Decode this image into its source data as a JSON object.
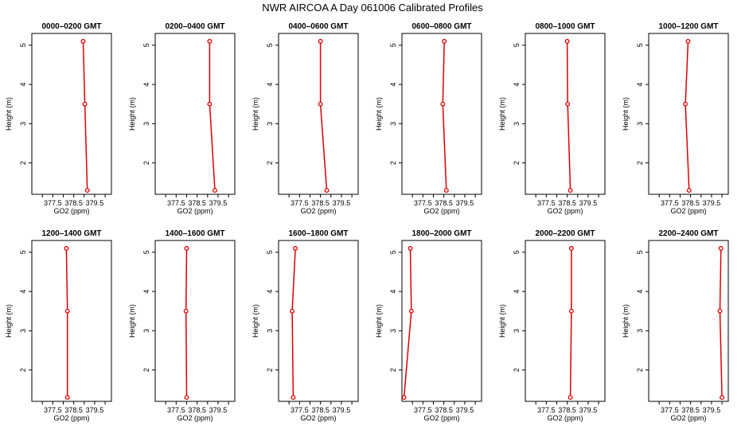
{
  "title": "NWR AIRCOA A  Day 061006  Calibrated Profiles",
  "colors": {
    "series": "#dd0000",
    "axis": "#000000",
    "background": "#ffffff"
  },
  "chart_data": [
    {
      "type": "line",
      "title": "0000–0200 GMT",
      "xlabel": "GO2 (ppm)",
      "ylabel": "Height (m)",
      "xlim": [
        376.5,
        380.3
      ],
      "ylim": [
        1.2,
        5.3
      ],
      "xticks": [
        377.5,
        378.5,
        379.5
      ],
      "xtick_labels": [
        "377.5",
        "378.5",
        "379.5"
      ],
      "yticks": [
        2,
        3,
        4,
        5
      ],
      "ytick_labels": [
        "2",
        "3",
        "4",
        "5"
      ],
      "x": [
        378.95,
        379.03,
        379.15
      ],
      "y": [
        5.1,
        3.5,
        1.3
      ]
    },
    {
      "type": "line",
      "title": "0200–0400 GMT",
      "xlabel": "GO2 (ppm)",
      "ylabel": "Height (m)",
      "xlim": [
        376.5,
        380.3
      ],
      "ylim": [
        1.2,
        5.3
      ],
      "xticks": [
        377.5,
        378.5,
        379.5
      ],
      "xtick_labels": [
        "377.5",
        "378.5",
        "379.5"
      ],
      "yticks": [
        2,
        3,
        4,
        5
      ],
      "ytick_labels": [
        "2",
        "3",
        "4",
        "5"
      ],
      "x": [
        379.1,
        379.1,
        379.35
      ],
      "y": [
        5.1,
        3.5,
        1.3
      ]
    },
    {
      "type": "line",
      "title": "0400–0600 GMT",
      "xlabel": "GO2 (ppm)",
      "ylabel": "Height (m)",
      "xlim": [
        376.5,
        380.3
      ],
      "ylim": [
        1.2,
        5.3
      ],
      "xticks": [
        377.5,
        378.5,
        379.5
      ],
      "xtick_labels": [
        "377.5",
        "378.5",
        "379.5"
      ],
      "yticks": [
        2,
        3,
        4,
        5
      ],
      "ytick_labels": [
        "2",
        "3",
        "4",
        "5"
      ],
      "x": [
        378.5,
        378.5,
        378.8
      ],
      "y": [
        5.1,
        3.5,
        1.3
      ]
    },
    {
      "type": "line",
      "title": "0600–0800 GMT",
      "xlabel": "GO2 (ppm)",
      "ylabel": "Height (m)",
      "xlim": [
        376.5,
        380.3
      ],
      "ylim": [
        1.2,
        5.3
      ],
      "xticks": [
        377.5,
        378.5,
        379.5
      ],
      "xtick_labels": [
        "377.5",
        "378.5",
        "379.5"
      ],
      "yticks": [
        2,
        3,
        4,
        5
      ],
      "ytick_labels": [
        "2",
        "3",
        "4",
        "5"
      ],
      "x": [
        378.52,
        378.45,
        378.62
      ],
      "y": [
        5.1,
        3.5,
        1.3
      ]
    },
    {
      "type": "line",
      "title": "0800–1000 GMT",
      "xlabel": "GO2 (ppm)",
      "ylabel": "Height (m)",
      "xlim": [
        376.5,
        380.3
      ],
      "ylim": [
        1.2,
        5.3
      ],
      "xticks": [
        377.5,
        378.5,
        379.5
      ],
      "xtick_labels": [
        "377.5",
        "378.5",
        "379.5"
      ],
      "yticks": [
        2,
        3,
        4,
        5
      ],
      "ytick_labels": [
        "2",
        "3",
        "4",
        "5"
      ],
      "x": [
        378.5,
        378.52,
        378.65
      ],
      "y": [
        5.1,
        3.5,
        1.3
      ]
    },
    {
      "type": "line",
      "title": "1000–1200 GMT",
      "xlabel": "GO2 (ppm)",
      "ylabel": "Height (m)",
      "xlim": [
        376.5,
        380.3
      ],
      "ylim": [
        1.2,
        5.3
      ],
      "xticks": [
        377.5,
        378.5,
        379.5
      ],
      "xtick_labels": [
        "377.5",
        "378.5",
        "379.5"
      ],
      "yticks": [
        2,
        3,
        4,
        5
      ],
      "ytick_labels": [
        "2",
        "3",
        "4",
        "5"
      ],
      "x": [
        378.38,
        378.25,
        378.43
      ],
      "y": [
        5.1,
        3.5,
        1.3
      ]
    },
    {
      "type": "line",
      "title": "1200–1400 GMT",
      "xlabel": "GO2 (ppm)",
      "ylabel": "Height (m)",
      "xlim": [
        376.5,
        380.3
      ],
      "ylim": [
        1.2,
        5.3
      ],
      "xticks": [
        377.5,
        378.5,
        379.5
      ],
      "xtick_labels": [
        "377.5",
        "378.5",
        "379.5"
      ],
      "yticks": [
        2,
        3,
        4,
        5
      ],
      "ytick_labels": [
        "2",
        "3",
        "4",
        "5"
      ],
      "x": [
        378.15,
        378.2,
        378.2
      ],
      "y": [
        5.1,
        3.5,
        1.3
      ]
    },
    {
      "type": "line",
      "title": "1400–1600 GMT",
      "xlabel": "GO2 (ppm)",
      "ylabel": "Height (m)",
      "xlim": [
        376.5,
        380.3
      ],
      "ylim": [
        1.2,
        5.3
      ],
      "xticks": [
        377.5,
        378.5,
        379.5
      ],
      "xtick_labels": [
        "377.5",
        "378.5",
        "379.5"
      ],
      "yticks": [
        2,
        3,
        4,
        5
      ],
      "ytick_labels": [
        "2",
        "3",
        "4",
        "5"
      ],
      "x": [
        378.0,
        377.97,
        378.0
      ],
      "y": [
        5.1,
        3.5,
        1.3
      ]
    },
    {
      "type": "line",
      "title": "1600–1800 GMT",
      "xlabel": "GO2 (ppm)",
      "ylabel": "Height (m)",
      "xlim": [
        376.5,
        380.3
      ],
      "ylim": [
        1.2,
        5.3
      ],
      "xticks": [
        377.5,
        378.5,
        379.5
      ],
      "xtick_labels": [
        "377.5",
        "378.5",
        "379.5"
      ],
      "yticks": [
        2,
        3,
        4,
        5
      ],
      "ytick_labels": [
        "2",
        "3",
        "4",
        "5"
      ],
      "x": [
        377.3,
        377.15,
        377.2
      ],
      "y": [
        5.1,
        3.5,
        1.3
      ]
    },
    {
      "type": "line",
      "title": "1800–2000 GMT",
      "xlabel": "GO2 (ppm)",
      "ylabel": "Height (m)",
      "xlim": [
        376.5,
        380.3
      ],
      "ylim": [
        1.2,
        5.3
      ],
      "xticks": [
        377.5,
        378.5,
        379.5
      ],
      "xtick_labels": [
        "377.5",
        "378.5",
        "379.5"
      ],
      "yticks": [
        2,
        3,
        4,
        5
      ],
      "ytick_labels": [
        "2",
        "3",
        "4",
        "5"
      ],
      "x": [
        376.9,
        376.95,
        376.6
      ],
      "y": [
        5.1,
        3.5,
        1.3
      ]
    },
    {
      "type": "line",
      "title": "2000–2200 GMT",
      "xlabel": "GO2 (ppm)",
      "ylabel": "Height (m)",
      "xlim": [
        376.5,
        380.3
      ],
      "ylim": [
        1.2,
        5.3
      ],
      "xticks": [
        377.5,
        378.5,
        379.5
      ],
      "xtick_labels": [
        "377.5",
        "378.5",
        "379.5"
      ],
      "yticks": [
        2,
        3,
        4,
        5
      ],
      "ytick_labels": [
        "2",
        "3",
        "4",
        "5"
      ],
      "x": [
        378.7,
        378.7,
        378.65
      ],
      "y": [
        5.1,
        3.5,
        1.3
      ]
    },
    {
      "type": "line",
      "title": "2200–2400 GMT",
      "xlabel": "GO2 (ppm)",
      "ylabel": "Height (m)",
      "xlim": [
        376.5,
        380.3
      ],
      "ylim": [
        1.2,
        5.3
      ],
      "xticks": [
        377.5,
        378.5,
        379.5
      ],
      "xtick_labels": [
        "377.5",
        "378.5",
        "379.5"
      ],
      "yticks": [
        2,
        3,
        4,
        5
      ],
      "ytick_labels": [
        "2",
        "3",
        "4",
        "5"
      ],
      "x": [
        379.95,
        379.9,
        380.0
      ],
      "y": [
        5.1,
        3.5,
        1.3
      ]
    }
  ]
}
